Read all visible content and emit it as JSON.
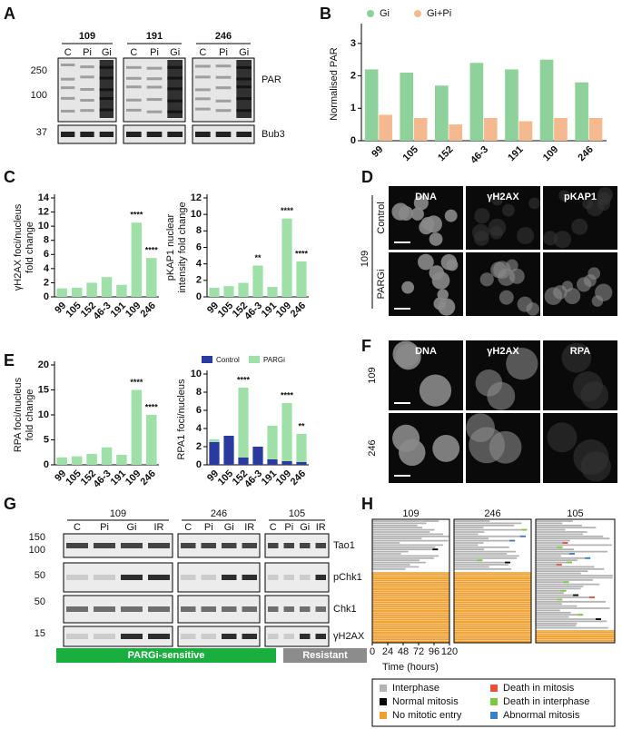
{
  "panel_labels": [
    "A",
    "B",
    "C",
    "D",
    "E",
    "F",
    "G",
    "H"
  ],
  "blot_a": {
    "groups": [
      "109",
      "191",
      "246"
    ],
    "lanes": [
      "C",
      "Pi",
      "Gi"
    ],
    "markers": [
      250,
      100,
      37
    ],
    "antibodies": [
      "PAR",
      "Bub3"
    ]
  },
  "chart_data": [
    {
      "type": "bar",
      "barmode": "group",
      "ylabel": [
        "Normalised PAR"
      ],
      "categories": [
        "99",
        "105",
        "152",
        "46-3",
        "191",
        "109",
        "246"
      ],
      "series": [
        {
          "name": "Gi",
          "color": "#8fd19a",
          "values": [
            2.2,
            2.1,
            1.7,
            2.4,
            2.2,
            2.5,
            1.8
          ]
        },
        {
          "name": "Gi+Pi",
          "color": "#f5b98f",
          "values": [
            0.8,
            0.7,
            0.5,
            0.7,
            0.6,
            0.7,
            0.7
          ]
        }
      ],
      "ylim": [
        0,
        3.5
      ],
      "yticks": [
        0,
        1,
        2,
        3
      ],
      "legend": "top"
    },
    {
      "type": "bar",
      "ylabel": [
        "γH2AX foci/nucleus",
        "fold change"
      ],
      "categories": [
        "99",
        "105",
        "152",
        "46-3",
        "191",
        "109",
        "246"
      ],
      "color": "#9fe0a8",
      "values": [
        1.2,
        1.3,
        2,
        2.8,
        1.7,
        10.5,
        5.5
      ],
      "annotations": [
        null,
        null,
        null,
        null,
        null,
        "****",
        "****"
      ],
      "ylim": [
        0,
        14
      ],
      "yticks": [
        0,
        2,
        4,
        6,
        8,
        10,
        12,
        14
      ]
    },
    {
      "type": "bar",
      "ylabel": [
        "pKAP1 nuclear",
        "intensity fold change"
      ],
      "categories": [
        "99",
        "105",
        "152",
        "46-3",
        "191",
        "109",
        "246"
      ],
      "color": "#9fe0a8",
      "values": [
        1.1,
        1.3,
        1.7,
        3.8,
        1.2,
        9.5,
        4.3
      ],
      "annotations": [
        null,
        null,
        null,
        "**",
        null,
        "****",
        "****"
      ],
      "ylim": [
        0,
        12
      ],
      "yticks": [
        0,
        2,
        4,
        6,
        8,
        10,
        12
      ]
    },
    {
      "type": "bar",
      "ylabel": [
        "RPA foci/nucleus",
        "fold change"
      ],
      "categories": [
        "99",
        "105",
        "152",
        "46-3",
        "191",
        "109",
        "246"
      ],
      "color": "#9fe0a8",
      "values": [
        1.5,
        1.7,
        2.2,
        3.5,
        2,
        15,
        10
      ],
      "annotations": [
        null,
        null,
        null,
        null,
        null,
        "****",
        "****"
      ],
      "ylim": [
        0,
        20
      ],
      "yticks": [
        0,
        5,
        10,
        15,
        20
      ]
    },
    {
      "type": "bar",
      "barmode": "overlay",
      "ylabel": [
        "RPA1 foci/nucleus"
      ],
      "categories": [
        "99",
        "105",
        "152",
        "46-3",
        "191",
        "109",
        "246"
      ],
      "series": [
        {
          "name": "Control",
          "color": "#2a3a9e",
          "values": [
            2.5,
            3.2,
            0.8,
            2.0,
            0.6,
            0.4,
            0.3
          ]
        },
        {
          "name": "PARGi",
          "color": "#9fe0a8",
          "values": [
            2.8,
            2.2,
            8.5,
            1.5,
            4.3,
            6.8,
            3.4
          ]
        }
      ],
      "annotations": [
        null,
        null,
        "****",
        null,
        null,
        "****",
        "**"
      ],
      "ylim": [
        0,
        10
      ],
      "yticks": [
        0,
        2,
        4,
        6,
        8,
        10
      ],
      "legend": "top"
    }
  ],
  "images_d": {
    "cell_line": "109",
    "channels": [
      "DNA",
      "γH2AX",
      "pKAP1"
    ],
    "conditions": [
      "Control",
      "PARGi"
    ]
  },
  "images_f": {
    "channels": [
      "DNA",
      "γH2AX",
      "RPA"
    ],
    "cell_lines": [
      "109",
      "246"
    ]
  },
  "blot_g": {
    "groups": [
      "109",
      "246",
      "105"
    ],
    "lanes": [
      "C",
      "Pi",
      "Gi",
      "IR"
    ],
    "markers": [
      150,
      100,
      50,
      50,
      15
    ],
    "antibodies": [
      "Tao1",
      "pChk1",
      "Chk1",
      "γH2AX"
    ],
    "classes": [
      "PARGi-sensitive",
      "Resistant"
    ]
  },
  "timeline_h": {
    "cell_lines": [
      "109",
      "246",
      "105"
    ],
    "xlim": [
      0,
      120
    ],
    "xticks": [
      0,
      24,
      48,
      72,
      96,
      120
    ],
    "xlabel": "Time (hours)",
    "legend": [
      {
        "name": "Interphase",
        "color": "#b3b3b3"
      },
      {
        "name": "Death in mitosis",
        "color": "#e8503a"
      },
      {
        "name": "Normal mitosis",
        "color": "#000000"
      },
      {
        "name": "Death in interphase",
        "color": "#7ac943"
      },
      {
        "name": "No mitotic entry",
        "color": "#f0a030"
      },
      {
        "name": "Abnormal mitosis",
        "color": "#3a7fc4"
      }
    ]
  }
}
